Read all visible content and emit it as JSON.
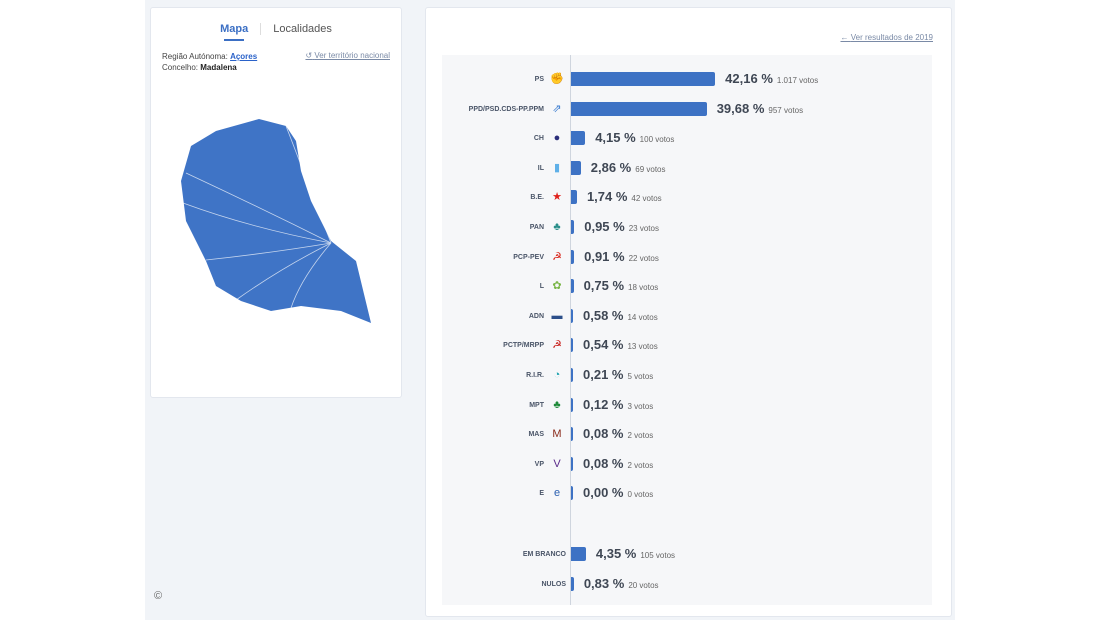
{
  "left": {
    "tabs": [
      "Mapa",
      "Localidades"
    ],
    "active_tab": "Mapa",
    "region_label": "Região Autónoma:",
    "region_value": "Açores",
    "council_label": "Concelho:",
    "council_value": "Madalena",
    "national_link": "Ver território nacional",
    "copyright": "©"
  },
  "right": {
    "back_link": "Ver resultados de 2019"
  },
  "colors": {
    "bar": "#3d72c4",
    "map": "#3f74c6",
    "link": "#2a62c9"
  },
  "chart_data": {
    "type": "bar",
    "orientation": "horizontal",
    "value_unit": "%",
    "votes_suffix": "votos",
    "parties": [
      {
        "name": "PS",
        "pct": 42.16,
        "pct_label": "42,16 %",
        "votes": "1.017 votos",
        "logo": "ps-fist-rose",
        "logo_color": "#f07a1a"
      },
      {
        "name": "PPD/PSD.CDS-PP.PPM",
        "pct": 39.68,
        "pct_label": "39,68 %",
        "votes": "957 votos",
        "logo": "ad-arrows",
        "logo_color": "#3c7dd0"
      },
      {
        "name": "CH",
        "pct": 4.15,
        "pct_label": "4,15 %",
        "votes": "100 votos",
        "logo": "chega-badge",
        "logo_color": "#2b2e7a"
      },
      {
        "name": "IL",
        "pct": 2.86,
        "pct_label": "2,86 %",
        "votes": "69 votos",
        "logo": "il-square",
        "logo_color": "#5fb0e8"
      },
      {
        "name": "B.E.",
        "pct": 1.74,
        "pct_label": "1,74 %",
        "votes": "42 votos",
        "logo": "be-star",
        "logo_color": "#e0201b"
      },
      {
        "name": "PAN",
        "pct": 0.95,
        "pct_label": "0,95 %",
        "votes": "23 votos",
        "logo": "pan-tree",
        "logo_color": "#2a8f8a"
      },
      {
        "name": "PCP-PEV",
        "pct": 0.91,
        "pct_label": "0,91 %",
        "votes": "22 votos",
        "logo": "cdu-hammer-sun",
        "logo_color": "#d9261c"
      },
      {
        "name": "L",
        "pct": 0.75,
        "pct_label": "0,75 %",
        "votes": "18 votos",
        "logo": "livre-poppy",
        "logo_color": "#7ab648"
      },
      {
        "name": "ADN",
        "pct": 0.58,
        "pct_label": "0,58 %",
        "votes": "14 votos",
        "logo": "adn-box",
        "logo_color": "#2c4f8a"
      },
      {
        "name": "PCTP/MRPP",
        "pct": 0.54,
        "pct_label": "0,54 %",
        "votes": "13 votos",
        "logo": "mrpp-hammer",
        "logo_color": "#c8201c"
      },
      {
        "name": "R.I.R.",
        "pct": 0.21,
        "pct_label": "0,21 %",
        "votes": "5 votos",
        "logo": "rir-drop",
        "logo_color": "#1fa3b0"
      },
      {
        "name": "MPT",
        "pct": 0.12,
        "pct_label": "0,12 %",
        "votes": "3 votos",
        "logo": "mpt-clover",
        "logo_color": "#1f8a3a"
      },
      {
        "name": "MAS",
        "pct": 0.08,
        "pct_label": "0,08 %",
        "votes": "2 votos",
        "logo": "mas-text",
        "logo_color": "#8a2a1a"
      },
      {
        "name": "VP",
        "pct": 0.08,
        "pct_label": "0,08 %",
        "votes": "2 votos",
        "logo": "volt-text",
        "logo_color": "#5a2a8a"
      },
      {
        "name": "E",
        "pct": 0.0,
        "pct_label": "0,00 %",
        "votes": "0 votos",
        "logo": "ergue-text",
        "logo_color": "#2a5fb0"
      }
    ],
    "other": [
      {
        "name": "EM BRANCO",
        "pct": 4.35,
        "pct_label": "4,35 %",
        "votes": "105 votos"
      },
      {
        "name": "NULOS",
        "pct": 0.83,
        "pct_label": "0,83 %",
        "votes": "20 votos"
      }
    ]
  }
}
